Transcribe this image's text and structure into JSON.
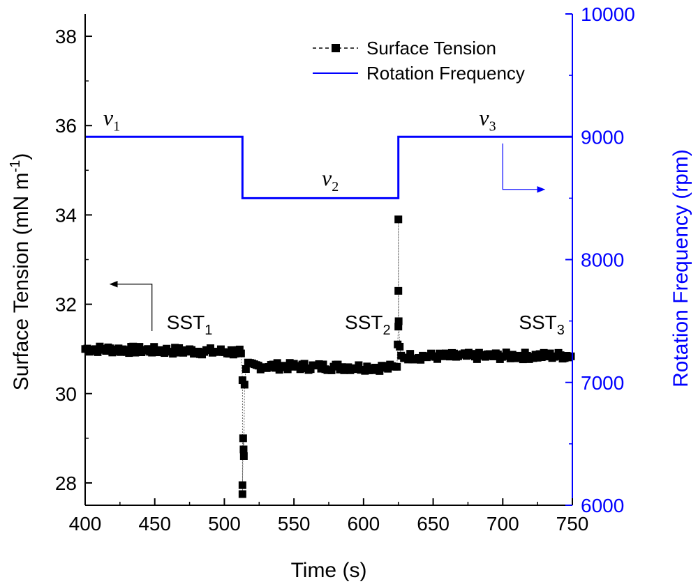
{
  "chart_data": {
    "type": "line",
    "xlabel": "Time (s)",
    "ylabel_left": "Surface Tension (mN m",
    "ylabel_left_sup": "-1",
    "ylabel_left_end": ")",
    "ylabel_right": "Rotation Frequency (rpm)",
    "xlim": [
      400,
      750
    ],
    "ylim_left": [
      27.5,
      38.5
    ],
    "ylim_right": [
      6000,
      10000
    ],
    "x_ticks": [
      400,
      450,
      500,
      550,
      600,
      650,
      700,
      750
    ],
    "y_left_ticks": [
      28,
      30,
      32,
      34,
      36,
      38
    ],
    "y_right_ticks": [
      6000,
      7000,
      8000,
      9000,
      10000
    ],
    "legend": [
      {
        "name": "Surface Tension",
        "style": "dashed-square-marker",
        "color": "#000000"
      },
      {
        "name": "Rotation Frequency",
        "style": "solid-line",
        "color": "#0000ff"
      }
    ],
    "series": [
      {
        "name": "Rotation Frequency",
        "axis": "right",
        "color": "#0000ff",
        "x": [
          400,
          513,
          513,
          625,
          625,
          750
        ],
        "y": [
          9000,
          9000,
          8500,
          8500,
          9000,
          9000
        ]
      },
      {
        "name": "Surface Tension",
        "axis": "left",
        "color": "#000000",
        "baseline_segments": [
          {
            "x0": 400,
            "x1": 511,
            "y0": 31.0,
            "y1": 30.93
          },
          {
            "x0": 517,
            "x1": 623,
            "y0": 30.62,
            "y1": 30.58
          },
          {
            "x0": 629,
            "x1": 750,
            "y0": 30.83,
            "y1": 30.85
          }
        ],
        "step_s": 1.5,
        "noise": 0.08,
        "transients": [
          {
            "x": 512,
            "y": 30.9
          },
          {
            "x": 513,
            "y": 30.3
          },
          {
            "x": 513.5,
            "y": 29.0
          },
          {
            "x": 513.8,
            "y": 28.75
          },
          {
            "x": 514,
            "y": 28.6
          },
          {
            "x": 513,
            "y": 27.95
          },
          {
            "x": 513,
            "y": 27.75
          },
          {
            "x": 514.5,
            "y": 30.2
          },
          {
            "x": 515.5,
            "y": 30.55
          },
          {
            "x": 624,
            "y": 30.6
          },
          {
            "x": 624.5,
            "y": 31.1
          },
          {
            "x": 625,
            "y": 31.5
          },
          {
            "x": 625.2,
            "y": 31.62
          },
          {
            "x": 625,
            "y": 32.3
          },
          {
            "x": 625,
            "y": 33.9
          },
          {
            "x": 626,
            "y": 31.05
          },
          {
            "x": 627,
            "y": 30.85
          }
        ]
      }
    ],
    "annotations": [
      {
        "type": "nu",
        "base": "ν",
        "sub": "1",
        "x": 413,
        "y_right": 9050
      },
      {
        "type": "nu",
        "base": "ν",
        "sub": "2",
        "x": 570,
        "y_right": 8560
      },
      {
        "type": "nu",
        "base": "ν",
        "sub": "3",
        "x": 683,
        "y_right": 9050
      },
      {
        "type": "sst",
        "base": "SST",
        "sub": "1",
        "x": 475,
        "y_left": 31.45
      },
      {
        "type": "sst",
        "base": "SST",
        "sub": "2",
        "x": 603,
        "y_left": 31.45
      },
      {
        "type": "sst",
        "base": "SST",
        "sub": "3",
        "x": 728,
        "y_left": 31.45
      }
    ],
    "arrows": [
      {
        "name": "arrow-to-left-axis",
        "points": [
          [
            448,
            31.4
          ],
          [
            448,
            32.45
          ],
          [
            418,
            32.45
          ]
        ],
        "color": "#000000"
      },
      {
        "name": "arrow-to-right-axis",
        "points": [
          [
            700,
            35.6
          ],
          [
            700,
            34.57
          ],
          [
            730,
            34.57
          ]
        ],
        "color": "#0000ff"
      }
    ]
  }
}
